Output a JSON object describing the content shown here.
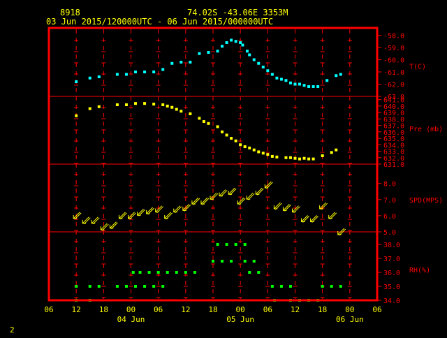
{
  "header": {
    "station_id": "8918",
    "location": "74.02S  -43.06E  3353M",
    "time_range": "03 Jun 2015/120000UTC - 06 Jun 2015/000000UTC"
  },
  "footer": {
    "page_number": "2"
  },
  "colors": {
    "background": "#000000",
    "frame": "#ff0000",
    "axis_text": "#ffff00",
    "panel_text": "#ff0000",
    "temperature": "#00ffff",
    "pressure": "#ffff00",
    "wind": "#ffff00",
    "rh": "#00ff00"
  },
  "chart_data": {
    "type": "scatter",
    "x_axis": {
      "unit": "hours since 03 Jun 2015 00UTC",
      "range": [
        6,
        78
      ],
      "tick_values": [
        6,
        12,
        18,
        24,
        30,
        36,
        42,
        48,
        54,
        60,
        66,
        72,
        78
      ],
      "tick_labels": [
        "06",
        "12",
        "18",
        "00",
        "06",
        "12",
        "18",
        "00",
        "06",
        "12",
        "18",
        "00",
        "06"
      ],
      "gridline_values": [
        12,
        18,
        24,
        30,
        36,
        42,
        48,
        54,
        60,
        66,
        72
      ],
      "date_labels": [
        {
          "x": 24,
          "label": "04 Jun"
        },
        {
          "x": 48,
          "label": "05 Jun"
        },
        {
          "x": 72,
          "label": "06 Jun"
        }
      ]
    },
    "panels": [
      {
        "id": "temperature",
        "label": "T(C)",
        "label_at": -60.5,
        "type": "scatter",
        "ylim": [
          -63,
          -57.4
        ],
        "yticks": [
          -58,
          -59,
          -60,
          -61,
          -62,
          -63
        ],
        "ytick_labels": [
          "-58.0",
          "-59.0",
          "-60.0",
          "-61.0",
          "-62.0",
          "-63.0"
        ],
        "color": "#00ffff",
        "points": [
          {
            "x": 12,
            "y": -61.8
          },
          {
            "x": 15,
            "y": -61.5
          },
          {
            "x": 17,
            "y": -61.4
          },
          {
            "x": 21,
            "y": -61.2
          },
          {
            "x": 23,
            "y": -61.2
          },
          {
            "x": 25,
            "y": -61.0
          },
          {
            "x": 27,
            "y": -61.0
          },
          {
            "x": 29,
            "y": -61.0
          },
          {
            "x": 31,
            "y": -60.8
          },
          {
            "x": 33,
            "y": -60.3
          },
          {
            "x": 35,
            "y": -60.2
          },
          {
            "x": 37,
            "y": -60.2
          },
          {
            "x": 39,
            "y": -59.5
          },
          {
            "x": 41,
            "y": -59.4
          },
          {
            "x": 43,
            "y": -59.3
          },
          {
            "x": 44,
            "y": -58.9
          },
          {
            "x": 45,
            "y": -58.6
          },
          {
            "x": 46,
            "y": -58.4
          },
          {
            "x": 47,
            "y": -58.5
          },
          {
            "x": 48,
            "y": -58.6
          },
          {
            "x": 48.5,
            "y": -58.8
          },
          {
            "x": 49.5,
            "y": -59.3
          },
          {
            "x": 50,
            "y": -59.6
          },
          {
            "x": 51,
            "y": -60.0
          },
          {
            "x": 52,
            "y": -60.3
          },
          {
            "x": 53,
            "y": -60.6
          },
          {
            "x": 54,
            "y": -60.9
          },
          {
            "x": 55,
            "y": -61.2
          },
          {
            "x": 56,
            "y": -61.5
          },
          {
            "x": 57,
            "y": -61.6
          },
          {
            "x": 58,
            "y": -61.7
          },
          {
            "x": 59,
            "y": -61.9
          },
          {
            "x": 60,
            "y": -62.0
          },
          {
            "x": 61,
            "y": -62.0
          },
          {
            "x": 62,
            "y": -62.1
          },
          {
            "x": 63,
            "y": -62.2
          },
          {
            "x": 64,
            "y": -62.2
          },
          {
            "x": 65,
            "y": -62.2
          },
          {
            "x": 67,
            "y": -61.7
          },
          {
            "x": 69,
            "y": -61.3
          },
          {
            "x": 70,
            "y": -61.2
          }
        ]
      },
      {
        "id": "pressure",
        "label": "Pre (mb)",
        "label_at": 636.5,
        "type": "scatter",
        "ylim": [
          631,
          641.5
        ],
        "yticks": [
          641,
          640,
          639,
          638,
          637,
          636,
          635,
          634,
          633,
          632,
          631
        ],
        "ytick_labels": [
          "641.0",
          "640.0",
          "639.0",
          "638.0",
          "637.0",
          "636.0",
          "635.0",
          "634.0",
          "633.0",
          "632.0",
          "631.0"
        ],
        "color": "#ffff00",
        "points": [
          {
            "x": 12,
            "y": 638.5
          },
          {
            "x": 15,
            "y": 639.6
          },
          {
            "x": 17,
            "y": 639.9
          },
          {
            "x": 21,
            "y": 640.2
          },
          {
            "x": 23,
            "y": 640.2
          },
          {
            "x": 25,
            "y": 640.4
          },
          {
            "x": 27,
            "y": 640.4
          },
          {
            "x": 29,
            "y": 640.3
          },
          {
            "x": 31,
            "y": 640.2
          },
          {
            "x": 32,
            "y": 640.0
          },
          {
            "x": 33,
            "y": 639.8
          },
          {
            "x": 34,
            "y": 639.5
          },
          {
            "x": 35,
            "y": 639.2
          },
          {
            "x": 37,
            "y": 638.8
          },
          {
            "x": 39,
            "y": 638.1
          },
          {
            "x": 40,
            "y": 637.6
          },
          {
            "x": 41,
            "y": 637.3
          },
          {
            "x": 43,
            "y": 636.8
          },
          {
            "x": 44,
            "y": 636.0
          },
          {
            "x": 45,
            "y": 635.5
          },
          {
            "x": 46,
            "y": 635.0
          },
          {
            "x": 47,
            "y": 634.6
          },
          {
            "x": 48,
            "y": 634.0
          },
          {
            "x": 49,
            "y": 633.7
          },
          {
            "x": 50,
            "y": 633.5
          },
          {
            "x": 51,
            "y": 633.2
          },
          {
            "x": 52,
            "y": 632.9
          },
          {
            "x": 53,
            "y": 632.7
          },
          {
            "x": 54,
            "y": 632.5
          },
          {
            "x": 55,
            "y": 632.2
          },
          {
            "x": 56,
            "y": 632.1
          },
          {
            "x": 58,
            "y": 632.0
          },
          {
            "x": 59,
            "y": 632.0
          },
          {
            "x": 60,
            "y": 631.9
          },
          {
            "x": 61,
            "y": 631.8
          },
          {
            "x": 62,
            "y": 631.9
          },
          {
            "x": 63,
            "y": 631.8
          },
          {
            "x": 64,
            "y": 631.8
          },
          {
            "x": 66,
            "y": 632.3
          },
          {
            "x": 68,
            "y": 632.8
          },
          {
            "x": 69,
            "y": 633.2
          }
        ]
      },
      {
        "id": "wind",
        "label": "SPD(MPS)",
        "label_at": 7.0,
        "type": "scatter",
        "ylim": [
          5,
          9.2
        ],
        "yticks": [
          8,
          7,
          6,
          5
        ],
        "ytick_labels": [
          "8.0",
          "7.0",
          "6.0",
          "5.0"
        ],
        "color": "#ffff00",
        "points": [
          {
            "x": 12,
            "y": 6.0
          },
          {
            "x": 14,
            "y": 5.7
          },
          {
            "x": 16,
            "y": 5.7
          },
          {
            "x": 18,
            "y": 5.3
          },
          {
            "x": 20,
            "y": 5.4
          },
          {
            "x": 22,
            "y": 6.0
          },
          {
            "x": 24,
            "y": 6.0
          },
          {
            "x": 26,
            "y": 6.2
          },
          {
            "x": 28,
            "y": 6.3
          },
          {
            "x": 30,
            "y": 6.4
          },
          {
            "x": 32,
            "y": 6.0
          },
          {
            "x": 34,
            "y": 6.4
          },
          {
            "x": 36,
            "y": 6.5
          },
          {
            "x": 38,
            "y": 6.9
          },
          {
            "x": 40,
            "y": 6.9
          },
          {
            "x": 42,
            "y": 7.2
          },
          {
            "x": 44,
            "y": 7.4
          },
          {
            "x": 46,
            "y": 7.5
          },
          {
            "x": 48,
            "y": 6.9
          },
          {
            "x": 50,
            "y": 7.2
          },
          {
            "x": 52,
            "y": 7.5
          },
          {
            "x": 54,
            "y": 7.9
          },
          {
            "x": 56,
            "y": 6.6
          },
          {
            "x": 58,
            "y": 6.5
          },
          {
            "x": 60,
            "y": 6.4
          },
          {
            "x": 62,
            "y": 5.8
          },
          {
            "x": 64,
            "y": 5.8
          },
          {
            "x": 66,
            "y": 6.6
          },
          {
            "x": 68,
            "y": 6.0
          },
          {
            "x": 70,
            "y": 5.0
          }
        ]
      },
      {
        "id": "rh",
        "label": "RH(%)",
        "label_at": 36.2,
        "type": "scatter",
        "ylim": [
          34,
          38.9
        ],
        "yticks": [
          38,
          37,
          36,
          35,
          34
        ],
        "ytick_labels": [
          "38.0",
          "37.0",
          "36.0",
          "35.0",
          "34.0"
        ],
        "color": "#00ff00",
        "points": [
          {
            "x": 12,
            "y": 35
          },
          {
            "x": 15,
            "y": 35
          },
          {
            "x": 17,
            "y": 35
          },
          {
            "x": 21,
            "y": 35
          },
          {
            "x": 23,
            "y": 35
          },
          {
            "x": 25,
            "y": 35
          },
          {
            "x": 27,
            "y": 35
          },
          {
            "x": 29,
            "y": 35
          },
          {
            "x": 31,
            "y": 35
          },
          {
            "x": 24.5,
            "y": 36
          },
          {
            "x": 26,
            "y": 36
          },
          {
            "x": 28,
            "y": 36
          },
          {
            "x": 30,
            "y": 36
          },
          {
            "x": 32,
            "y": 36
          },
          {
            "x": 34,
            "y": 36
          },
          {
            "x": 36,
            "y": 36
          },
          {
            "x": 38,
            "y": 36
          },
          {
            "x": 42,
            "y": 36.8
          },
          {
            "x": 44,
            "y": 36.8
          },
          {
            "x": 46,
            "y": 36.8
          },
          {
            "x": 43,
            "y": 38
          },
          {
            "x": 45,
            "y": 38
          },
          {
            "x": 47,
            "y": 38
          },
          {
            "x": 49,
            "y": 38
          },
          {
            "x": 49,
            "y": 36.8
          },
          {
            "x": 51,
            "y": 36.8
          },
          {
            "x": 50,
            "y": 36
          },
          {
            "x": 52,
            "y": 36
          },
          {
            "x": 55,
            "y": 35
          },
          {
            "x": 57,
            "y": 35
          },
          {
            "x": 59,
            "y": 35
          },
          {
            "x": 55.5,
            "y": 34
          },
          {
            "x": 59,
            "y": 34
          },
          {
            "x": 61,
            "y": 34
          },
          {
            "x": 63,
            "y": 34
          },
          {
            "x": 65,
            "y": 34
          },
          {
            "x": 12,
            "y": 34
          },
          {
            "x": 15,
            "y": 34
          },
          {
            "x": 66,
            "y": 35
          },
          {
            "x": 68,
            "y": 35
          },
          {
            "x": 70,
            "y": 35
          }
        ]
      }
    ]
  }
}
